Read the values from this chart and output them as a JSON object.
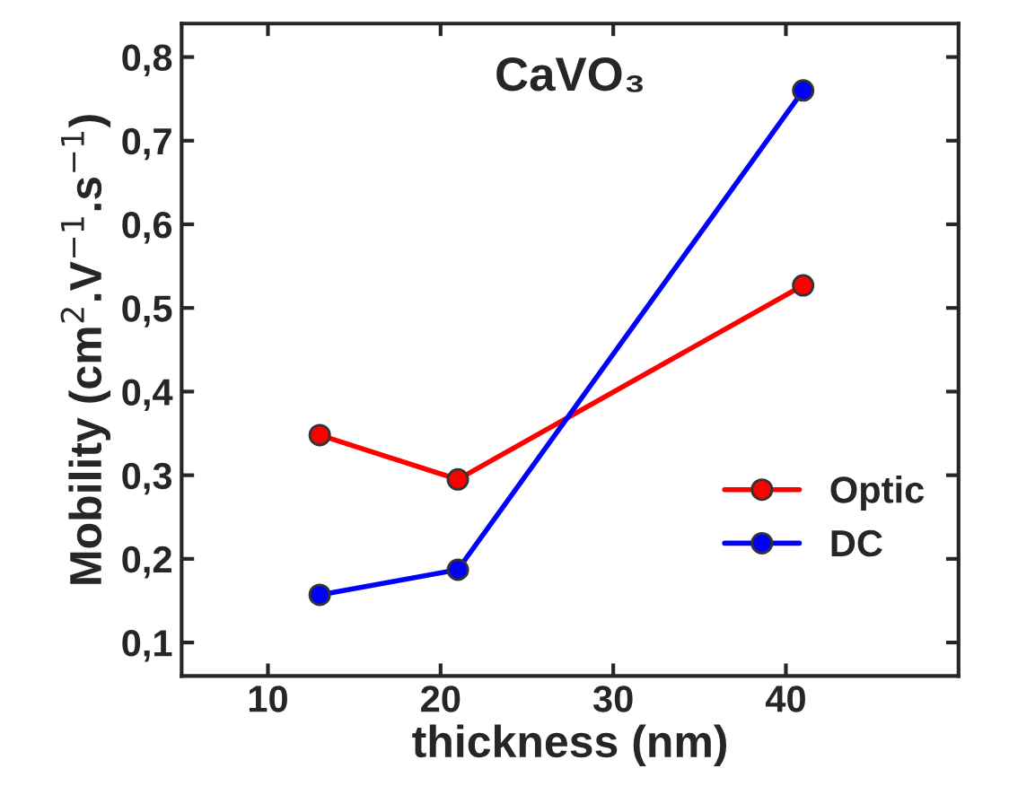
{
  "chart_data": {
    "type": "line",
    "title": "CaVO₃",
    "xlabel": "thickness (nm)",
    "ylabel": "Mobility (cm$^{2}$.V$^{−1}$.s$^{−1}$)",
    "x": [
      13,
      21,
      41
    ],
    "series": [
      {
        "name": "Optic",
        "color": "#ff0000",
        "values": [
          0.348,
          0.295,
          0.527
        ]
      },
      {
        "name": "DC",
        "color": "#0000ff",
        "values": [
          0.157,
          0.187,
          0.76
        ]
      }
    ],
    "xlim": [
      5,
      50
    ],
    "xticks": [
      10,
      20,
      30,
      40
    ],
    "ylim": [
      0.06,
      0.84
    ],
    "yticks": [
      {
        "value": 0.1,
        "label": "0,1"
      },
      {
        "value": 0.2,
        "label": "0,2"
      },
      {
        "value": 0.3,
        "label": "0,3"
      },
      {
        "value": 0.4,
        "label": "0,4"
      },
      {
        "value": 0.5,
        "label": "0,5"
      },
      {
        "value": 0.6,
        "label": "0,6"
      },
      {
        "value": 0.7,
        "label": "0,7"
      },
      {
        "value": 0.8,
        "label": "0,8"
      }
    ],
    "marker": "circle",
    "line_style": "solid",
    "legend": "lower right",
    "grid": false
  }
}
